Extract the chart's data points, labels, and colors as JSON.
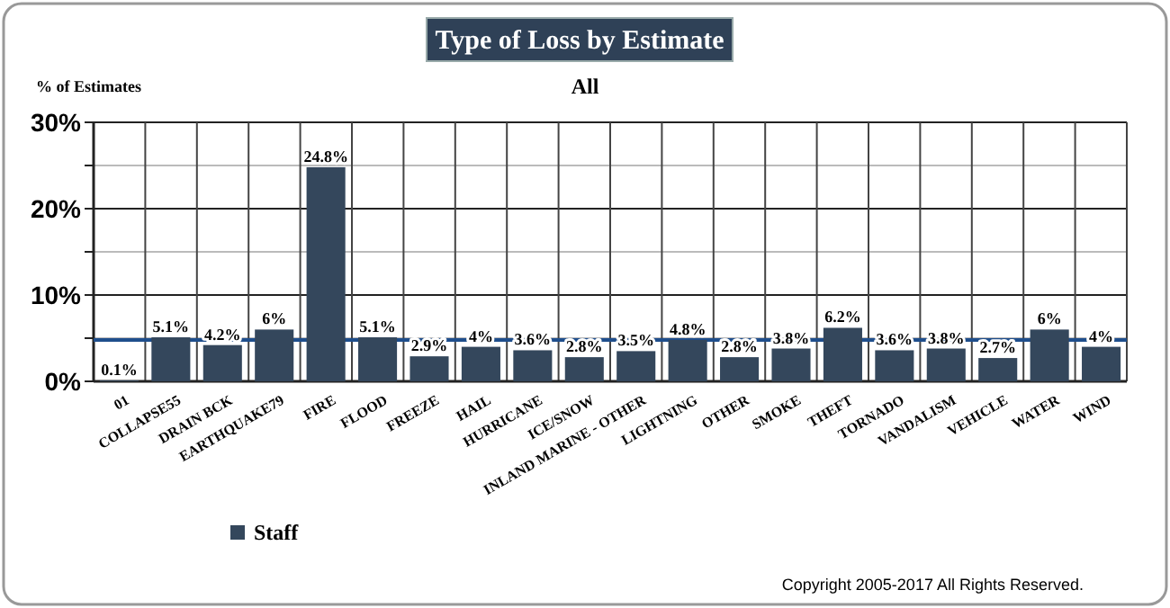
{
  "chart_data": {
    "type": "bar",
    "title": "Type of Loss by Estimate",
    "subtitle": "All",
    "ylabel": "% of Estimates",
    "categories": [
      "01",
      "COLLAPSE55",
      "DRAIN BCK",
      "EARTHQUAKE79",
      "FIRE",
      "FLOOD",
      "FREEZE",
      "HAIL",
      "HURRICANE",
      "ICE/SNOW",
      "INLAND MARINE - OTHER",
      "LIGHTNING",
      "OTHER",
      "SMOKE",
      "THEFT",
      "TORNADO",
      "VANDALISM",
      "VEHICLE",
      "WATER",
      "WIND"
    ],
    "series": [
      {
        "name": "Staff",
        "color": "#34475c",
        "values": [
          0.1,
          5.1,
          4.2,
          6,
          24.8,
          5.1,
          2.9,
          4,
          3.6,
          2.8,
          3.5,
          4.8,
          2.8,
          3.8,
          6.2,
          3.6,
          3.8,
          2.7,
          6,
          4
        ],
        "value_labels": [
          "0.1%",
          "5.1%",
          "4.2%",
          "6%",
          "24.8%",
          "5.1%",
          "2.9%",
          "4%",
          "3.6%",
          "2.8%",
          "3.5%",
          "4.8%",
          "2.8%",
          "3.8%",
          "6.2%",
          "3.6%",
          "3.8%",
          "2.7%",
          "6%",
          "4%"
        ]
      }
    ],
    "ylim": [
      0,
      30
    ],
    "yticks": [
      {
        "value": 0,
        "label": "0%"
      },
      {
        "value": 5,
        "label": null
      },
      {
        "value": 10,
        "label": "10%"
      },
      {
        "value": 15,
        "label": null
      },
      {
        "value": 20,
        "label": "20%"
      },
      {
        "value": 25,
        "label": null
      },
      {
        "value": 30,
        "label": "30%"
      }
    ],
    "ref_lines": [
      {
        "axis": "y",
        "value": 4.8,
        "color": "#1f4e8c"
      }
    ],
    "grid": true,
    "legend": "bottom left",
    "annotations": [
      "Copyright 2005-2017 All Rights Reserved."
    ]
  }
}
